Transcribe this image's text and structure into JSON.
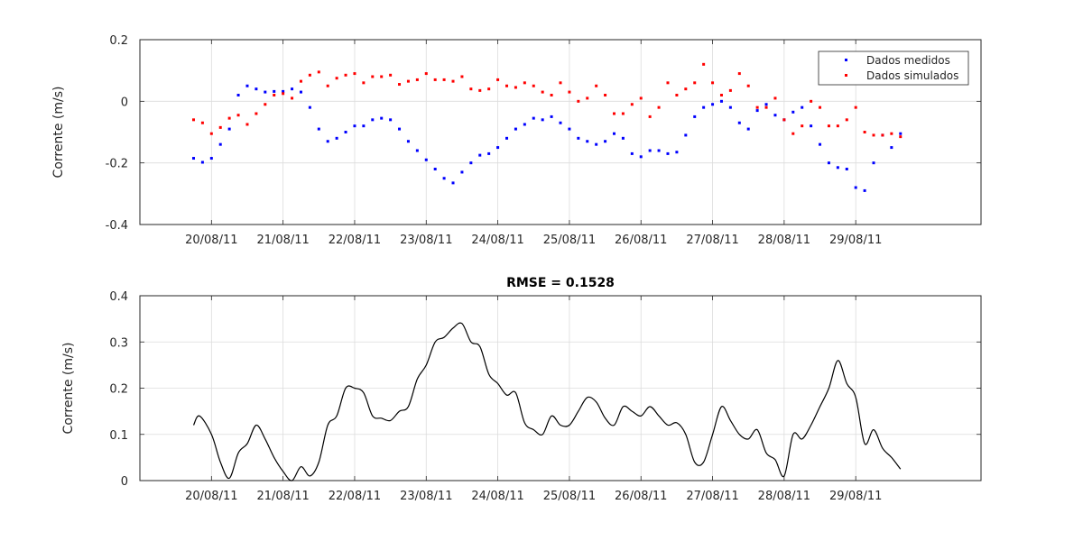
{
  "chart_data": [
    {
      "type": "scatter",
      "title": "",
      "xlabel": "",
      "ylabel": "Corrente (m/s)",
      "xlim": [
        "2011-08-19T00:00",
        "2011-08-30T18:00"
      ],
      "ylim": [
        -0.4,
        0.2
      ],
      "yticks": [
        "0.2",
        "0",
        "-0.2",
        "-0.4"
      ],
      "xtick_labels": [
        "20/08/11",
        "21/08/11",
        "22/08/11",
        "23/08/11",
        "24/08/11",
        "25/08/11",
        "26/08/11",
        "27/08/11",
        "28/08/11",
        "29/08/11"
      ],
      "grid": true,
      "legend": "top-right",
      "series": [
        {
          "name": "Dados medidos",
          "color": "#0000ff",
          "x": [
            "2011-08-19T18:00",
            "2011-08-19T21:00",
            "2011-08-20T00:00",
            "2011-08-20T03:00",
            "2011-08-20T06:00",
            "2011-08-20T09:00",
            "2011-08-20T12:00",
            "2011-08-20T15:00",
            "2011-08-20T18:00",
            "2011-08-20T21:00",
            "2011-08-21T00:00",
            "2011-08-21T03:00",
            "2011-08-21T06:00",
            "2011-08-21T09:00",
            "2011-08-21T12:00",
            "2011-08-21T15:00",
            "2011-08-21T18:00",
            "2011-08-21T21:00",
            "2011-08-22T00:00",
            "2011-08-22T03:00",
            "2011-08-22T06:00",
            "2011-08-22T09:00",
            "2011-08-22T12:00",
            "2011-08-22T15:00",
            "2011-08-22T18:00",
            "2011-08-22T21:00",
            "2011-08-23T00:00",
            "2011-08-23T03:00",
            "2011-08-23T06:00",
            "2011-08-23T09:00",
            "2011-08-23T12:00",
            "2011-08-23T15:00",
            "2011-08-23T18:00",
            "2011-08-23T21:00",
            "2011-08-24T00:00",
            "2011-08-24T03:00",
            "2011-08-24T06:00",
            "2011-08-24T09:00",
            "2011-08-24T12:00",
            "2011-08-24T15:00",
            "2011-08-24T18:00",
            "2011-08-24T21:00",
            "2011-08-25T00:00",
            "2011-08-25T03:00",
            "2011-08-25T06:00",
            "2011-08-25T09:00",
            "2011-08-25T12:00",
            "2011-08-25T15:00",
            "2011-08-25T18:00",
            "2011-08-25T21:00",
            "2011-08-26T00:00",
            "2011-08-26T03:00",
            "2011-08-26T06:00",
            "2011-08-26T09:00",
            "2011-08-26T12:00",
            "2011-08-26T15:00",
            "2011-08-26T18:00",
            "2011-08-26T21:00",
            "2011-08-27T00:00",
            "2011-08-27T03:00",
            "2011-08-27T06:00",
            "2011-08-27T09:00",
            "2011-08-27T12:00",
            "2011-08-27T15:00",
            "2011-08-27T18:00",
            "2011-08-27T21:00",
            "2011-08-28T00:00",
            "2011-08-28T03:00",
            "2011-08-28T06:00",
            "2011-08-28T09:00",
            "2011-08-28T12:00",
            "2011-08-28T15:00",
            "2011-08-28T18:00",
            "2011-08-28T21:00",
            "2011-08-29T00:00",
            "2011-08-29T03:00",
            "2011-08-29T06:00",
            "2011-08-29T09:00",
            "2011-08-29T12:00",
            "2011-08-29T15:00"
          ],
          "y": [
            -0.185,
            -0.198,
            -0.185,
            -0.14,
            -0.09,
            0.02,
            0.05,
            0.04,
            0.03,
            0.032,
            0.032,
            0.04,
            0.03,
            -0.02,
            -0.09,
            -0.13,
            -0.12,
            -0.1,
            -0.08,
            -0.08,
            -0.06,
            -0.055,
            -0.06,
            -0.09,
            -0.13,
            -0.16,
            -0.19,
            -0.22,
            -0.25,
            -0.265,
            -0.23,
            -0.2,
            -0.175,
            -0.17,
            -0.15,
            -0.12,
            -0.09,
            -0.075,
            -0.055,
            -0.06,
            -0.05,
            -0.07,
            -0.09,
            -0.12,
            -0.13,
            -0.14,
            -0.13,
            -0.105,
            -0.12,
            -0.17,
            -0.18,
            -0.16,
            -0.16,
            -0.17,
            -0.165,
            -0.11,
            -0.05,
            -0.02,
            -0.01,
            0.0,
            -0.02,
            -0.07,
            -0.09,
            -0.03,
            -0.01,
            -0.045,
            -0.06,
            -0.035,
            -0.02,
            -0.08,
            -0.14,
            -0.2,
            -0.215,
            -0.22,
            -0.28,
            -0.29,
            -0.2,
            -0.11,
            -0.15,
            -0.105
          ]
        },
        {
          "name": "Dados simulados",
          "color": "#ff0000",
          "x": [
            "2011-08-19T18:00",
            "2011-08-19T21:00",
            "2011-08-20T00:00",
            "2011-08-20T03:00",
            "2011-08-20T06:00",
            "2011-08-20T09:00",
            "2011-08-20T12:00",
            "2011-08-20T15:00",
            "2011-08-20T18:00",
            "2011-08-20T21:00",
            "2011-08-21T00:00",
            "2011-08-21T03:00",
            "2011-08-21T06:00",
            "2011-08-21T09:00",
            "2011-08-21T12:00",
            "2011-08-21T15:00",
            "2011-08-21T18:00",
            "2011-08-21T21:00",
            "2011-08-22T00:00",
            "2011-08-22T03:00",
            "2011-08-22T06:00",
            "2011-08-22T09:00",
            "2011-08-22T12:00",
            "2011-08-22T15:00",
            "2011-08-22T18:00",
            "2011-08-22T21:00",
            "2011-08-23T00:00",
            "2011-08-23T03:00",
            "2011-08-23T06:00",
            "2011-08-23T09:00",
            "2011-08-23T12:00",
            "2011-08-23T15:00",
            "2011-08-23T18:00",
            "2011-08-23T21:00",
            "2011-08-24T00:00",
            "2011-08-24T03:00",
            "2011-08-24T06:00",
            "2011-08-24T09:00",
            "2011-08-24T12:00",
            "2011-08-24T15:00",
            "2011-08-24T18:00",
            "2011-08-24T21:00",
            "2011-08-25T00:00",
            "2011-08-25T03:00",
            "2011-08-25T06:00",
            "2011-08-25T09:00",
            "2011-08-25T12:00",
            "2011-08-25T15:00",
            "2011-08-25T18:00",
            "2011-08-25T21:00",
            "2011-08-26T00:00",
            "2011-08-26T03:00",
            "2011-08-26T06:00",
            "2011-08-26T09:00",
            "2011-08-26T12:00",
            "2011-08-26T15:00",
            "2011-08-26T18:00",
            "2011-08-26T21:00",
            "2011-08-27T00:00",
            "2011-08-27T03:00",
            "2011-08-27T06:00",
            "2011-08-27T09:00",
            "2011-08-27T12:00",
            "2011-08-27T15:00",
            "2011-08-27T18:00",
            "2011-08-27T21:00",
            "2011-08-28T00:00",
            "2011-08-28T03:00",
            "2011-08-28T06:00",
            "2011-08-28T09:00",
            "2011-08-28T12:00",
            "2011-08-28T15:00",
            "2011-08-28T18:00",
            "2011-08-28T21:00",
            "2011-08-29T00:00",
            "2011-08-29T03:00",
            "2011-08-29T06:00",
            "2011-08-29T09:00",
            "2011-08-29T12:00",
            "2011-08-29T15:00"
          ],
          "y": [
            -0.06,
            -0.07,
            -0.105,
            -0.085,
            -0.055,
            -0.045,
            -0.075,
            -0.04,
            -0.01,
            0.02,
            0.025,
            0.01,
            0.065,
            0.085,
            0.095,
            0.05,
            0.075,
            0.085,
            0.09,
            0.06,
            0.08,
            0.08,
            0.085,
            0.055,
            0.065,
            0.07,
            0.09,
            0.07,
            0.07,
            0.065,
            0.08,
            0.04,
            0.035,
            0.04,
            0.07,
            0.05,
            0.045,
            0.06,
            0.05,
            0.03,
            0.02,
            0.06,
            0.03,
            0.0,
            0.01,
            0.05,
            0.02,
            -0.04,
            -0.04,
            -0.01,
            0.01,
            -0.05,
            -0.02,
            0.06,
            0.02,
            0.04,
            0.06,
            0.12,
            0.06,
            0.02,
            0.035,
            0.09,
            0.05,
            -0.02,
            -0.02,
            0.01,
            -0.06,
            -0.105,
            -0.08,
            0.0,
            -0.02,
            -0.08,
            -0.08,
            -0.06,
            -0.02,
            -0.1,
            -0.11,
            -0.11,
            -0.105,
            -0.115
          ]
        }
      ]
    },
    {
      "type": "line",
      "title": "RMSE = 0.1528",
      "xlabel": "",
      "ylabel": "Corrente (m/s)",
      "xlim": [
        "2011-08-19T00:00",
        "2011-08-30T18:00"
      ],
      "ylim": [
        0,
        0.4
      ],
      "yticks": [
        "0.4",
        "0.3",
        "0.2",
        "0.1",
        "0"
      ],
      "xtick_labels": [
        "20/08/11",
        "21/08/11",
        "22/08/11",
        "23/08/11",
        "24/08/11",
        "25/08/11",
        "26/08/11",
        "27/08/11",
        "28/08/11",
        "29/08/11"
      ],
      "grid": true,
      "series": [
        {
          "color": "#000000",
          "x": [
            "2011-08-19T18:00",
            "2011-08-19T20:00",
            "2011-08-20T00:00",
            "2011-08-20T03:00",
            "2011-08-20T06:00",
            "2011-08-20T09:00",
            "2011-08-20T12:00",
            "2011-08-20T15:00",
            "2011-08-20T18:00",
            "2011-08-20T21:00",
            "2011-08-21T00:00",
            "2011-08-21T03:00",
            "2011-08-21T06:00",
            "2011-08-21T09:00",
            "2011-08-21T12:00",
            "2011-08-21T15:00",
            "2011-08-21T18:00",
            "2011-08-21T21:00",
            "2011-08-22T00:00",
            "2011-08-22T03:00",
            "2011-08-22T06:00",
            "2011-08-22T09:00",
            "2011-08-22T12:00",
            "2011-08-22T15:00",
            "2011-08-22T18:00",
            "2011-08-22T21:00",
            "2011-08-23T00:00",
            "2011-08-23T03:00",
            "2011-08-23T06:00",
            "2011-08-23T09:00",
            "2011-08-23T12:00",
            "2011-08-23T15:00",
            "2011-08-23T18:00",
            "2011-08-23T21:00",
            "2011-08-24T00:00",
            "2011-08-24T03:00",
            "2011-08-24T06:00",
            "2011-08-24T09:00",
            "2011-08-24T12:00",
            "2011-08-24T15:00",
            "2011-08-24T18:00",
            "2011-08-24T21:00",
            "2011-08-25T00:00",
            "2011-08-25T03:00",
            "2011-08-25T06:00",
            "2011-08-25T09:00",
            "2011-08-25T12:00",
            "2011-08-25T15:00",
            "2011-08-25T18:00",
            "2011-08-25T21:00",
            "2011-08-26T00:00",
            "2011-08-26T03:00",
            "2011-08-26T06:00",
            "2011-08-26T09:00",
            "2011-08-26T12:00",
            "2011-08-26T15:00",
            "2011-08-26T18:00",
            "2011-08-26T21:00",
            "2011-08-27T00:00",
            "2011-08-27T03:00",
            "2011-08-27T06:00",
            "2011-08-27T09:00",
            "2011-08-27T12:00",
            "2011-08-27T15:00",
            "2011-08-27T18:00",
            "2011-08-27T21:00",
            "2011-08-28T00:00",
            "2011-08-28T03:00",
            "2011-08-28T06:00",
            "2011-08-28T09:00",
            "2011-08-28T12:00",
            "2011-08-28T15:00",
            "2011-08-28T18:00",
            "2011-08-28T21:00",
            "2011-08-29T00:00",
            "2011-08-29T03:00",
            "2011-08-29T06:00",
            "2011-08-29T09:00",
            "2011-08-29T12:00",
            "2011-08-29T15:00"
          ],
          "y": [
            0.12,
            0.14,
            0.1,
            0.04,
            0.005,
            0.06,
            0.08,
            0.12,
            0.09,
            0.05,
            0.02,
            0.0,
            0.03,
            0.01,
            0.04,
            0.12,
            0.14,
            0.2,
            0.2,
            0.19,
            0.14,
            0.135,
            0.13,
            0.15,
            0.16,
            0.22,
            0.25,
            0.3,
            0.31,
            0.33,
            0.34,
            0.3,
            0.29,
            0.23,
            0.21,
            0.185,
            0.19,
            0.125,
            0.11,
            0.1,
            0.14,
            0.12,
            0.12,
            0.15,
            0.18,
            0.17,
            0.135,
            0.12,
            0.16,
            0.15,
            0.14,
            0.16,
            0.14,
            0.12,
            0.125,
            0.1,
            0.04,
            0.04,
            0.1,
            0.16,
            0.13,
            0.1,
            0.09,
            0.11,
            0.06,
            0.045,
            0.01,
            0.1,
            0.09,
            0.12,
            0.16,
            0.2,
            0.26,
            0.21,
            0.18,
            0.08,
            0.11,
            0.07,
            0.05,
            0.025
          ]
        }
      ]
    }
  ]
}
